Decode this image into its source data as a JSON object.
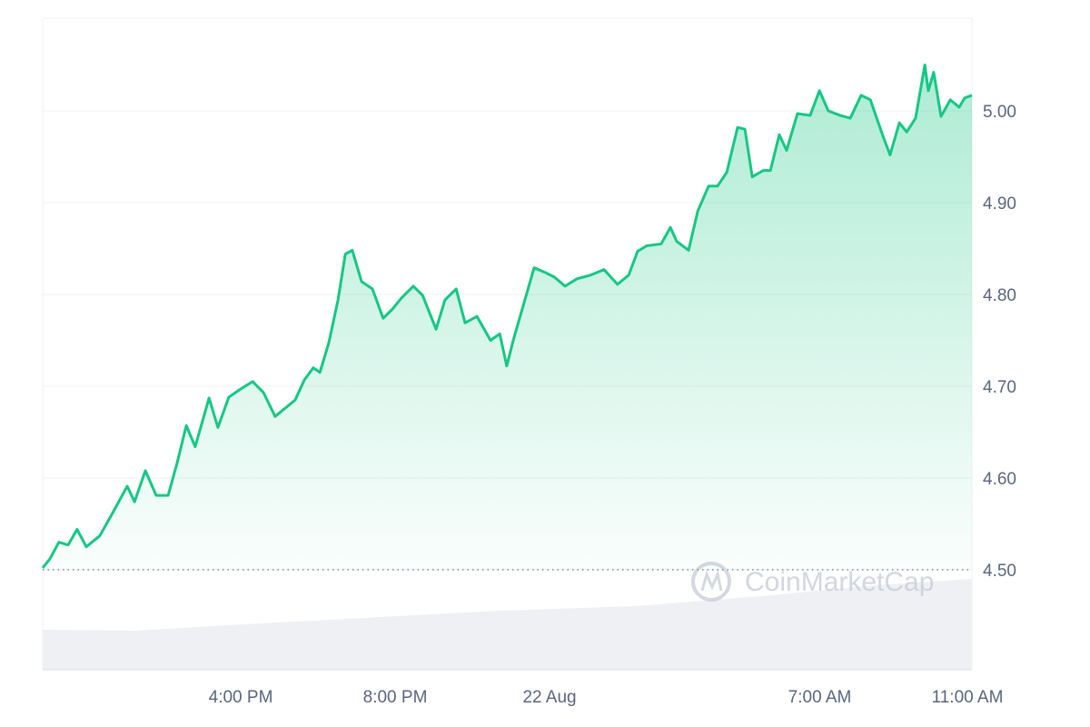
{
  "chart_data": {
    "type": "line",
    "watermark": "CoinMarketCap",
    "x": [
      10.87,
      11.06,
      11.29,
      11.53,
      11.76,
      12.0,
      12.35,
      12.71,
      13.06,
      13.25,
      13.53,
      13.81,
      14.12,
      14.35,
      14.59,
      14.82,
      15.18,
      15.41,
      15.69,
      16.0,
      16.31,
      16.59,
      16.89,
      17.18,
      17.41,
      17.65,
      17.88,
      18.05,
      18.28,
      18.52,
      18.71,
      18.89,
      19.13,
      19.41,
      19.69,
      19.93,
      20.16,
      20.47,
      20.71,
      21.06,
      21.29,
      21.58,
      21.81,
      22.12,
      22.47,
      22.71,
      22.89,
      23.06,
      23.36,
      23.6,
      23.88,
      24.12,
      24.4,
      24.71,
      25.06,
      25.41,
      25.76,
      26.05,
      26.28,
      26.52,
      26.89,
      27.13,
      27.29,
      27.6,
      27.84,
      28.12,
      28.35,
      28.59,
      28.87,
      29.06,
      29.25,
      29.53,
      29.72,
      29.95,
      30.14,
      30.42,
      30.75,
      30.99,
      31.22,
      31.53,
      31.79,
      32.07,
      32.31,
      32.64,
      32.82,
      33.06,
      33.25,
      33.48,
      33.72,
      33.81,
      33.95,
      34.14,
      34.38,
      34.61,
      34.75,
      34.94
    ],
    "series": [
      {
        "color": "#16c784",
        "values": [
          4.502,
          4.512,
          4.53,
          4.527,
          4.544,
          4.525,
          4.537,
          4.564,
          4.591,
          4.574,
          4.608,
          4.581,
          4.581,
          4.616,
          4.657,
          4.634,
          4.687,
          4.655,
          4.688,
          4.697,
          4.705,
          4.693,
          4.667,
          4.677,
          4.685,
          4.707,
          4.72,
          4.715,
          4.747,
          4.794,
          4.844,
          4.848,
          4.814,
          4.806,
          4.774,
          4.784,
          4.796,
          4.809,
          4.799,
          4.762,
          4.794,
          4.806,
          4.769,
          4.776,
          4.75,
          4.757,
          4.722,
          4.75,
          4.794,
          4.829,
          4.824,
          4.819,
          4.809,
          4.817,
          4.821,
          4.827,
          4.811,
          4.821,
          4.847,
          4.853,
          4.855,
          4.873,
          4.858,
          4.848,
          4.891,
          4.918,
          4.918,
          4.933,
          4.982,
          4.98,
          4.928,
          4.935,
          4.935,
          4.974,
          4.957,
          4.997,
          4.995,
          5.022,
          5.0,
          4.995,
          4.992,
          5.017,
          5.012,
          4.972,
          4.952,
          4.987,
          4.977,
          4.992,
          5.05,
          5.022,
          5.042,
          4.994,
          5.012,
          5.004,
          5.014,
          5.017
        ]
      }
    ],
    "reference_line": 4.5,
    "xlim": [
      10.87,
      34.94
    ],
    "xticks": [
      {
        "value": 16,
        "label": "4:00 PM"
      },
      {
        "value": 20,
        "label": "8:00 PM"
      },
      {
        "value": 24,
        "label": "22 Aug"
      },
      {
        "value": 31,
        "label": "7:00 AM"
      },
      {
        "value": 35,
        "label": "11:00 AM"
      }
    ],
    "ylim": [
      4.391,
      5.101
    ],
    "yticks": [
      {
        "value": 4.5,
        "label": "4.50"
      },
      {
        "value": 4.6,
        "label": "4.60"
      },
      {
        "value": 4.7,
        "label": "4.70"
      },
      {
        "value": 4.8,
        "label": "4.80"
      },
      {
        "value": 4.9,
        "label": "4.90"
      },
      {
        "value": 5.0,
        "label": "5.00"
      }
    ],
    "grid": true
  }
}
